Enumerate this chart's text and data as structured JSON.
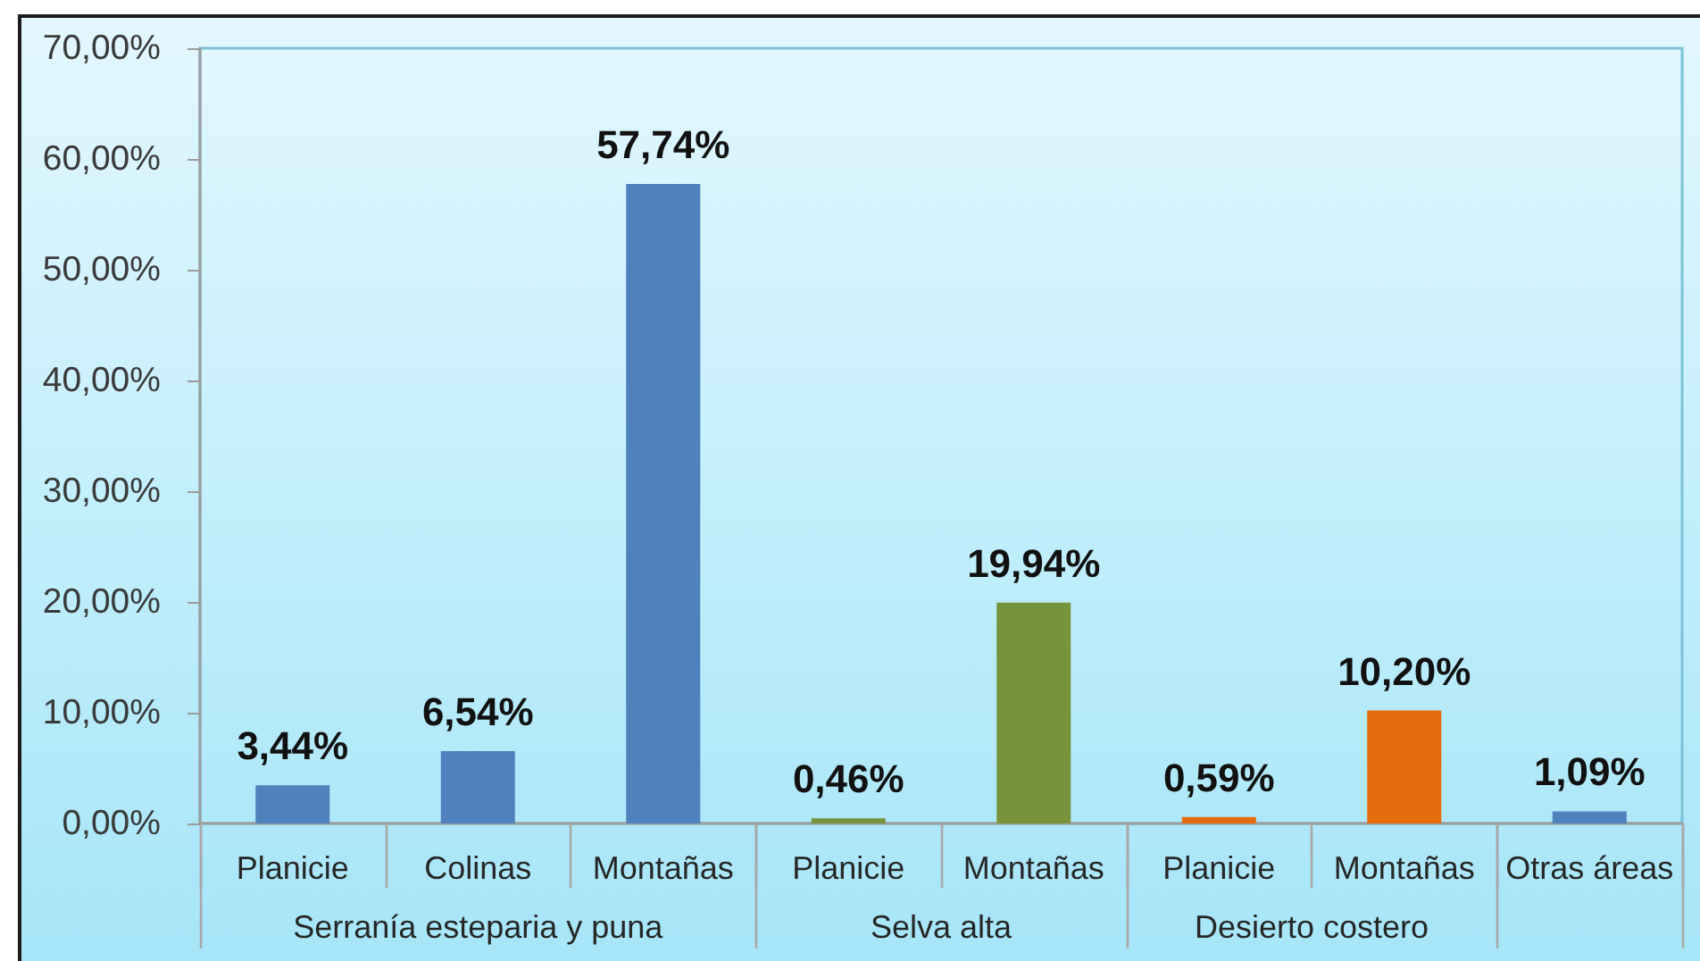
{
  "chart_data": {
    "type": "bar",
    "categories": [
      "Planicie",
      "Colinas",
      "Montañas",
      "Planicie",
      "Montañas",
      "Planicie",
      "Montañas",
      "Otras áreas"
    ],
    "series": [
      {
        "name": "Serranía esteparia y puna",
        "color": "#4f81bd",
        "values": [
          3.44,
          6.54,
          57.74,
          null,
          null,
          null,
          null,
          null
        ],
        "value_labels": [
          "3,44%",
          "6,54%",
          "57,74%",
          null,
          null,
          null,
          null,
          null
        ]
      },
      {
        "name": "Selva alta",
        "color": "#77933c",
        "values": [
          null,
          null,
          null,
          0.46,
          19.94,
          null,
          null,
          null
        ],
        "value_labels": [
          null,
          null,
          null,
          "0,46%",
          "19,94%",
          null,
          null,
          null
        ]
      },
      {
        "name": "Desierto costero",
        "color": "#e46c0a",
        "values": [
          null,
          null,
          null,
          null,
          null,
          0.59,
          10.2,
          null
        ],
        "value_labels": [
          null,
          null,
          null,
          null,
          null,
          "0,59%",
          "10,20%",
          null
        ]
      },
      {
        "color": "#4f81bd",
        "values": [
          null,
          null,
          null,
          null,
          null,
          null,
          null,
          1.09
        ],
        "value_labels": [
          null,
          null,
          null,
          null,
          null,
          null,
          null,
          "1,09%"
        ]
      }
    ],
    "ylim": [
      0,
      70
    ],
    "yticks": [
      {
        "value": 0,
        "label": "0,00%"
      },
      {
        "value": 10,
        "label": "10,00%"
      },
      {
        "value": 20,
        "label": "20,00%"
      },
      {
        "value": 30,
        "label": "30,00%"
      },
      {
        "value": 40,
        "label": "40,00%"
      },
      {
        "value": 50,
        "label": "50,00%"
      },
      {
        "value": 60,
        "label": "60,00%"
      },
      {
        "value": 70,
        "label": "70,00%"
      }
    ]
  }
}
